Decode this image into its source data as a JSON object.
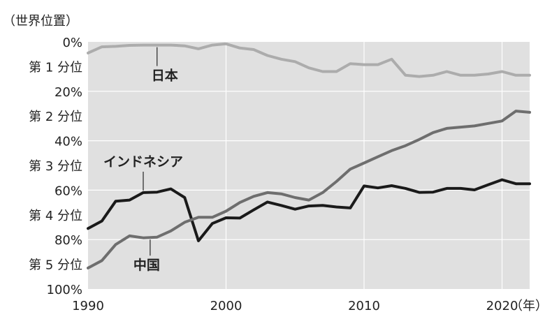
{
  "chart_data": {
    "type": "line",
    "ylabel": "（世界位置）",
    "x_unit_label": "（年）",
    "xlim": [
      1990,
      2022
    ],
    "ylim": [
      0,
      100
    ],
    "y_reversed": true,
    "x_ticks": [
      {
        "value": 1990,
        "label": "1990"
      },
      {
        "value": 2000,
        "label": "2000"
      },
      {
        "value": 2010,
        "label": "2010"
      },
      {
        "value": 2020,
        "label": "2020"
      }
    ],
    "y_ticks": [
      {
        "value": 0,
        "label": "0%"
      },
      {
        "value": 20,
        "label": "20%"
      },
      {
        "value": 40,
        "label": "40%"
      },
      {
        "value": 60,
        "label": "60%"
      },
      {
        "value": 80,
        "label": "80%"
      },
      {
        "value": 100,
        "label": "100%"
      }
    ],
    "bands": [
      {
        "from": 0,
        "to": 20,
        "label": "第 1 分位"
      },
      {
        "from": 20,
        "to": 40,
        "label": "第 2 分位"
      },
      {
        "from": 40,
        "to": 60,
        "label": "第 3 分位"
      },
      {
        "from": 60,
        "to": 80,
        "label": "第 4 分位"
      },
      {
        "from": 80,
        "to": 100,
        "label": "第 5 分位"
      }
    ],
    "grid": true,
    "background": "#e0e0e0",
    "x": [
      1990,
      1991,
      1992,
      1993,
      1994,
      1995,
      1996,
      1997,
      1998,
      1999,
      2000,
      2001,
      2002,
      2003,
      2004,
      2005,
      2006,
      2007,
      2008,
      2009,
      2010,
      2011,
      2012,
      2013,
      2014,
      2015,
      2016,
      2017,
      2018,
      2019,
      2020,
      2021,
      2022
    ],
    "series": [
      {
        "name": "日本",
        "color": "#acacac",
        "values": [
          4.5,
          2,
          1.8,
          1.4,
          1.3,
          1.3,
          1.3,
          1.6,
          2.8,
          1.3,
          0.8,
          2.5,
          3.1,
          5.5,
          7,
          8,
          10.5,
          12,
          12,
          8.8,
          9.2,
          9.2,
          7,
          13.5,
          14,
          13.5,
          12,
          13.5,
          13.5,
          13,
          12,
          13.5,
          13.5
        ]
      },
      {
        "name": "インドネシア",
        "color": "#1a1a1a",
        "values": [
          75.5,
          72.5,
          64.5,
          64,
          61,
          60.8,
          59.5,
          63,
          80.5,
          73.5,
          71.2,
          71.3,
          68,
          64.8,
          66.2,
          67.7,
          66.4,
          66.2,
          66.8,
          67.2,
          58.3,
          59.1,
          58.2,
          59.3,
          60.9,
          60.8,
          59.3,
          59.3,
          59.9,
          57.8,
          55.8,
          57.4,
          57.4
        ]
      },
      {
        "name": "中国",
        "color": "#6e6e6e",
        "values": [
          91.5,
          88.5,
          82,
          78.5,
          79.3,
          79,
          76.5,
          73,
          71,
          71,
          68.5,
          65,
          62.5,
          61,
          61.5,
          63,
          64,
          61,
          56.5,
          51.5,
          49,
          46.5,
          44,
          42,
          39.5,
          36.7,
          35,
          34.5,
          34,
          33,
          32,
          28,
          28.5
        ]
      }
    ],
    "annotations": [
      {
        "text": "日本",
        "series": "日本"
      },
      {
        "text": "インドネシア",
        "series": "インドネシア"
      },
      {
        "text": "中国",
        "series": "中国"
      }
    ]
  }
}
